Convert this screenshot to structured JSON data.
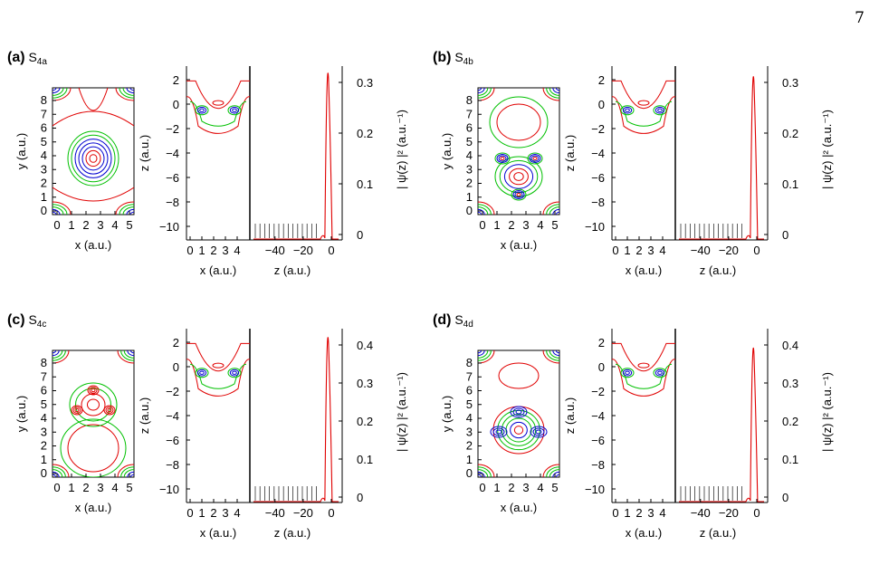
{
  "page_number": "7",
  "panels": [
    {
      "label": "(a)",
      "sym": "S",
      "sub": "4a",
      "xy_xticks": [
        "0",
        "1",
        "2",
        "3",
        "4",
        "5"
      ],
      "xy_yticks": [
        "0",
        "1",
        "2",
        "3",
        "4",
        "5",
        "6",
        "7",
        "8"
      ],
      "xz_xticks": [
        "0",
        "1",
        "2",
        "3",
        "4"
      ],
      "xz_yticks": [
        "2",
        "0",
        "−2",
        "−4",
        "−6",
        "−8",
        "−10"
      ],
      "z_ticks": [
        "−40",
        "−20",
        "0"
      ],
      "psi_ticks": [
        "0",
        "0.1",
        "0.2",
        "0.3"
      ]
    },
    {
      "label": "(b)",
      "sym": "S",
      "sub": "4b",
      "xy_xticks": [
        "0",
        "1",
        "2",
        "3",
        "4",
        "5"
      ],
      "xy_yticks": [
        "0",
        "1",
        "2",
        "3",
        "4",
        "5",
        "6",
        "7",
        "8"
      ],
      "xz_xticks": [
        "0",
        "1",
        "2",
        "3",
        "4"
      ],
      "xz_yticks": [
        "2",
        "0",
        "−2",
        "−4",
        "−6",
        "−8",
        "−10"
      ],
      "z_ticks": [
        "−40",
        "−20",
        "0"
      ],
      "psi_ticks": [
        "0",
        "0.1",
        "0.2",
        "0.3"
      ]
    },
    {
      "label": "(c)",
      "sym": "S",
      "sub": "4c",
      "xy_xticks": [
        "0",
        "1",
        "2",
        "3",
        "4",
        "5"
      ],
      "xy_yticks": [
        "0",
        "1",
        "2",
        "3",
        "4",
        "5",
        "6",
        "7",
        "8"
      ],
      "xz_xticks": [
        "0",
        "1",
        "2",
        "3",
        "4"
      ],
      "xz_yticks": [
        "2",
        "0",
        "−2",
        "−4",
        "−6",
        "−8",
        "−10"
      ],
      "z_ticks": [
        "−40",
        "−20",
        "0"
      ],
      "psi_ticks": [
        "0",
        "0.1",
        "0.2",
        "0.3",
        "0.4"
      ]
    },
    {
      "label": "(d)",
      "sym": "S",
      "sub": "4d",
      "xy_xticks": [
        "0",
        "1",
        "2",
        "3",
        "4",
        "5"
      ],
      "xy_yticks": [
        "0",
        "1",
        "2",
        "3",
        "4",
        "5",
        "6",
        "7",
        "8"
      ],
      "xz_xticks": [
        "0",
        "1",
        "2",
        "3",
        "4"
      ],
      "xz_yticks": [
        "2",
        "0",
        "−2",
        "−4",
        "−6",
        "−8",
        "−10"
      ],
      "z_ticks": [
        "−40",
        "−20",
        "0"
      ],
      "psi_ticks": [
        "0",
        "0.1",
        "0.2",
        "0.3",
        "0.4"
      ]
    }
  ],
  "labels": {
    "x_label": "x (a.u.)",
    "y_label": "y (a.u.)",
    "z_label": "z (a.u.)",
    "psi_label": "| ψ(z) |² (a.u.⁻¹)"
  },
  "colors": {
    "outer": "#e00000",
    "mid": "#00c000",
    "inner": "#0000d0",
    "axis": "#000000"
  }
}
